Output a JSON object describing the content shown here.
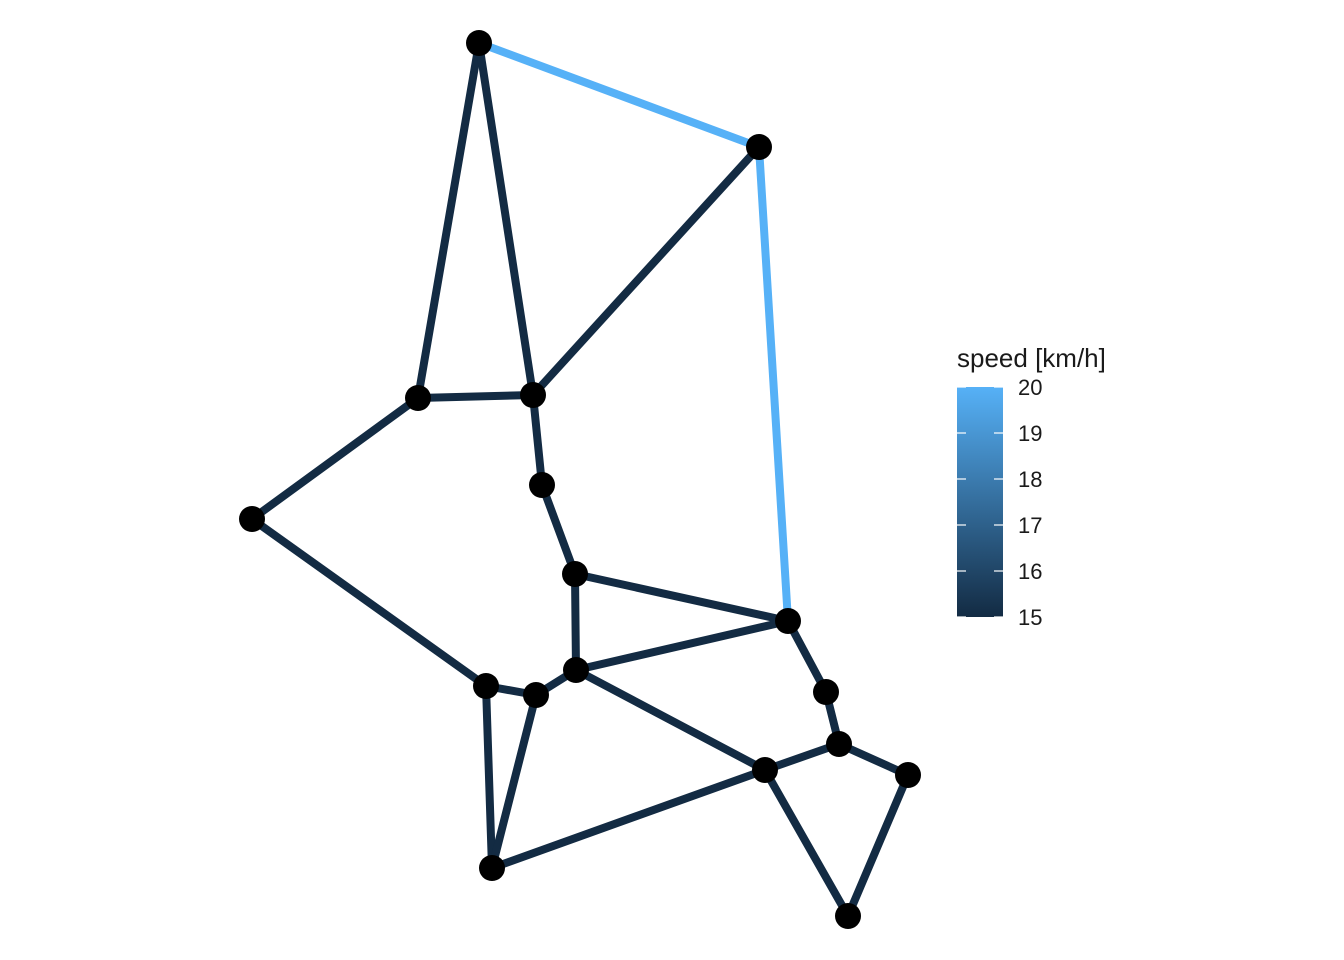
{
  "legend": {
    "title": "speed [km/h]",
    "ticks": [
      "15",
      "16",
      "17",
      "18",
      "19",
      "20"
    ],
    "tick_values": [
      15,
      16,
      17,
      18,
      19,
      20
    ],
    "range": [
      15,
      20
    ],
    "color_low": "#132B43",
    "color_high": "#56B1F7"
  },
  "node_color": "#000000",
  "network": {
    "nodes": [
      {
        "id": "n1"
      },
      {
        "id": "n2"
      },
      {
        "id": "n3"
      },
      {
        "id": "n4"
      },
      {
        "id": "n5"
      },
      {
        "id": "n6"
      },
      {
        "id": "n7"
      },
      {
        "id": "n8"
      },
      {
        "id": "n9"
      },
      {
        "id": "n10"
      },
      {
        "id": "n11"
      },
      {
        "id": "n12"
      },
      {
        "id": "n13"
      },
      {
        "id": "n14"
      },
      {
        "id": "n15"
      },
      {
        "id": "n16"
      },
      {
        "id": "n17"
      },
      {
        "id": "n18"
      }
    ],
    "edges": [
      {
        "from": "n1",
        "to": "n2",
        "speed": 20
      },
      {
        "from": "n2",
        "to": "n9",
        "speed": 20
      },
      {
        "from": "n1",
        "to": "n3",
        "speed": 15
      },
      {
        "from": "n1",
        "to": "n4",
        "speed": 15
      },
      {
        "from": "n3",
        "to": "n4",
        "speed": 15
      },
      {
        "from": "n2",
        "to": "n4",
        "speed": 15
      },
      {
        "from": "n3",
        "to": "n5",
        "speed": 15
      },
      {
        "from": "n4",
        "to": "n6",
        "speed": 15
      },
      {
        "from": "n6",
        "to": "n7",
        "speed": 15
      },
      {
        "from": "n7",
        "to": "n9",
        "speed": 15
      },
      {
        "from": "n7",
        "to": "n10",
        "speed": 15
      },
      {
        "from": "n10",
        "to": "n9",
        "speed": 15
      },
      {
        "from": "n5",
        "to": "n11",
        "speed": 15
      },
      {
        "from": "n11",
        "to": "n12",
        "speed": 15
      },
      {
        "from": "n12",
        "to": "n10",
        "speed": 15
      },
      {
        "from": "n11",
        "to": "n17",
        "speed": 15
      },
      {
        "from": "n12",
        "to": "n17",
        "speed": 15
      },
      {
        "from": "n10",
        "to": "n15",
        "speed": 15
      },
      {
        "from": "n17",
        "to": "n15",
        "speed": 15
      },
      {
        "from": "n9",
        "to": "n13",
        "speed": 15
      },
      {
        "from": "n13",
        "to": "n14",
        "speed": 15
      },
      {
        "from": "n14",
        "to": "n15",
        "speed": 15
      },
      {
        "from": "n14",
        "to": "n16",
        "speed": 15
      },
      {
        "from": "n16",
        "to": "n18",
        "speed": 15
      },
      {
        "from": "n15",
        "to": "n18",
        "speed": 15
      }
    ]
  }
}
